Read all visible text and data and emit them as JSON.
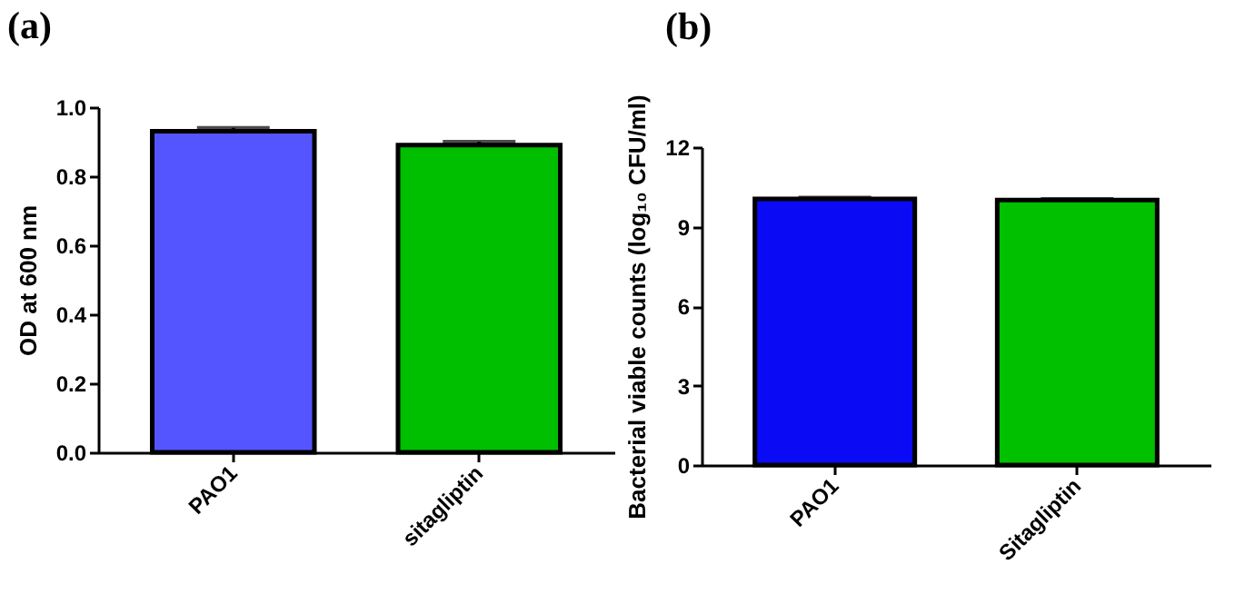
{
  "chart_data": [
    {
      "type": "bar",
      "title": "(a)",
      "categories": [
        "PAO1",
        "sitagliptin"
      ],
      "values": [
        0.93,
        0.89
      ],
      "errors": [
        0.01,
        0.01
      ],
      "colors": [
        "#5555ff",
        "#00bf00"
      ],
      "ylabel": "OD at 600 nm",
      "ylim": [
        0,
        1.0
      ],
      "yticks": [
        {
          "value": 0,
          "label": "0.0"
        },
        0.2,
        0.4,
        0.6,
        0.8,
        {
          "value": 1.0,
          "label": "1.0"
        }
      ]
    },
    {
      "type": "bar",
      "title": "(b)",
      "categories": [
        "PAO1",
        "Sitagliptin"
      ],
      "values": [
        10.05,
        10.0
      ],
      "errors": [
        0.05,
        0.05
      ],
      "colors": [
        "#0a0af5",
        "#00c000"
      ],
      "ylabel": "Bacterial viable counts (log₁₀ CFU/ml)",
      "ylim": [
        0,
        12
      ],
      "yticks": [
        0,
        3,
        6,
        9,
        12
      ]
    }
  ]
}
